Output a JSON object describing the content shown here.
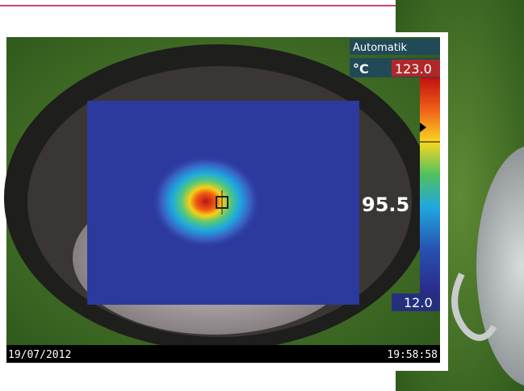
{
  "header": {
    "mode": "Automatik",
    "unit": "°C"
  },
  "scale": {
    "max": "123.0",
    "min": "12.0"
  },
  "spot": {
    "value": "95.5"
  },
  "footer": {
    "date": "19/07/2012",
    "time": "19:58:58"
  }
}
